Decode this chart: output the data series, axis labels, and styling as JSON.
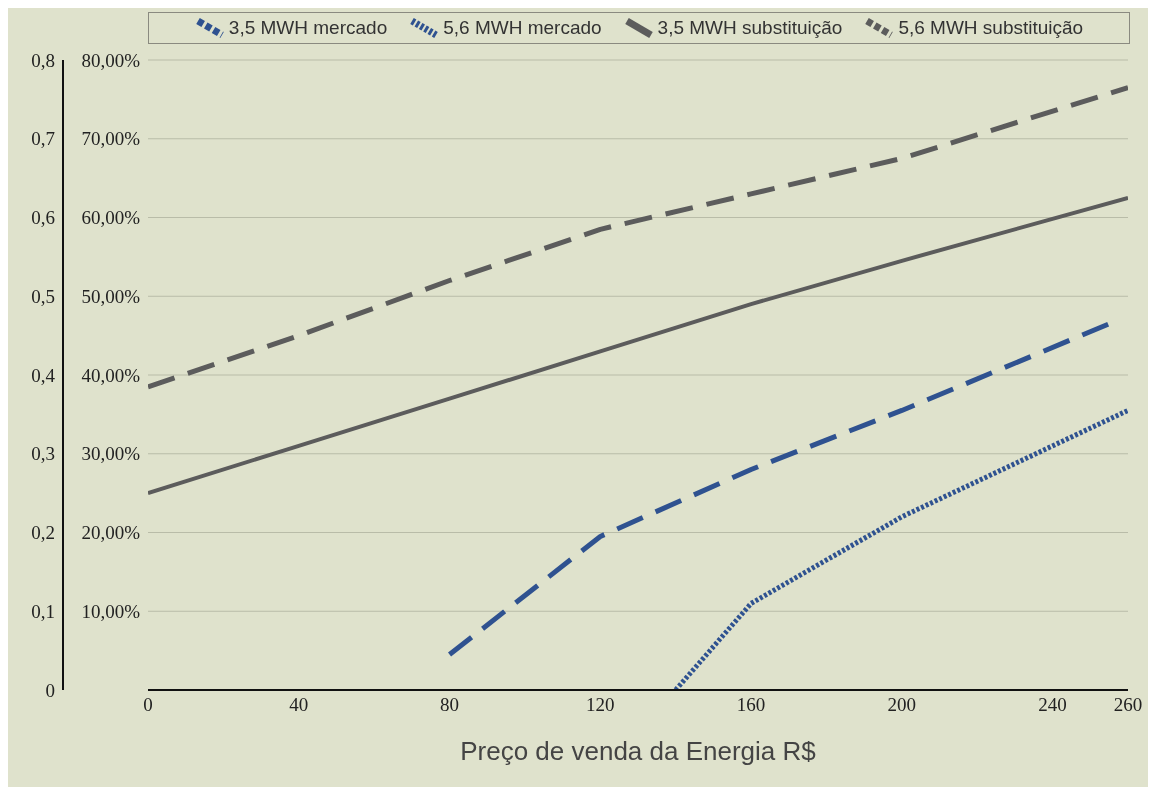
{
  "chart_data": {
    "type": "line",
    "xlabel": "Preço de venda da Energia R$",
    "x": [
      0,
      40,
      80,
      120,
      160,
      200,
      260
    ],
    "xlim": [
      0,
      260
    ],
    "xticks": [
      0,
      40,
      80,
      120,
      160,
      200,
      240,
      260
    ],
    "ylim": [
      0,
      0.8
    ],
    "yticks": [
      {
        "value": 0,
        "label": null
      },
      {
        "value": 0.1,
        "label": "10,00%"
      },
      {
        "value": 0.2,
        "label": "20,00%"
      },
      {
        "value": 0.3,
        "label": "30,00%"
      },
      {
        "value": 0.4,
        "label": "40,00%"
      },
      {
        "value": 0.5,
        "label": "50,00%"
      },
      {
        "value": 0.6,
        "label": "60,00%"
      },
      {
        "value": 0.7,
        "label": "70,00%"
      },
      {
        "value": 0.8,
        "label": "80,00%"
      }
    ],
    "y2lim": [
      0,
      0.8
    ],
    "y2ticks": [
      0,
      {
        "value": 0.1,
        "label": "0,1"
      },
      {
        "value": 0.2,
        "label": "0,2"
      },
      {
        "value": 0.3,
        "label": "0,3"
      },
      {
        "value": 0.4,
        "label": "0,4"
      },
      {
        "value": 0.5,
        "label": "0,5"
      },
      {
        "value": 0.6,
        "label": "0,6"
      },
      {
        "value": 0.7,
        "label": "0,7"
      },
      {
        "value": 0.8,
        "label": "0,8"
      }
    ],
    "grid": "y",
    "legend": "top",
    "marker": "none",
    "series": [
      {
        "name": "3,5 MWH mercado",
        "color": "#2f5290",
        "line_style": "dashed",
        "x": [
          80,
          120,
          160,
          200,
          255
        ],
        "values": [
          0.045,
          0.195,
          0.28,
          0.355,
          0.465
        ]
      },
      {
        "name": "5,6 MWH mercado",
        "color": "#2f5290",
        "line_style": "dotted",
        "x": [
          140,
          160,
          200,
          260
        ],
        "values": [
          0,
          0.11,
          0.22,
          0.355
        ]
      },
      {
        "name": "3,5 MWH substituição",
        "color": "#5c5c5c",
        "line_style": "solid",
        "values": [
          0.25,
          0.31,
          0.37,
          0.43,
          0.49,
          0.545,
          0.625
        ]
      },
      {
        "name": "5,6 MWH substituição",
        "color": "#5c5c5c",
        "line_style": "dashed",
        "values": [
          0.385,
          0.45,
          0.52,
          0.585,
          0.63,
          0.675,
          0.765
        ]
      }
    ]
  }
}
